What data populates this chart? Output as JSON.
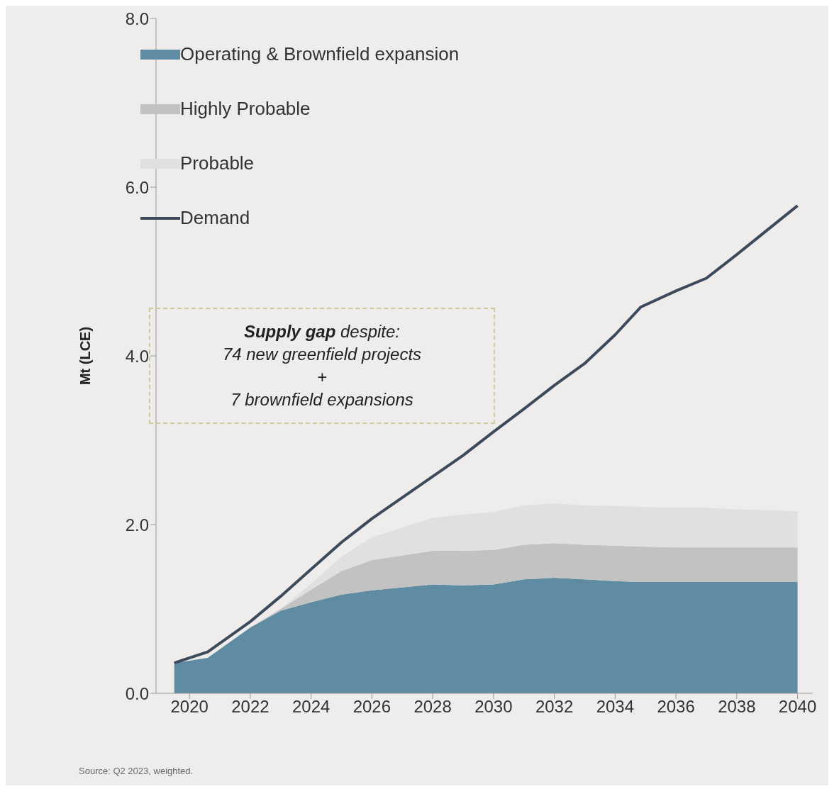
{
  "chart_data": {
    "type": "area",
    "ylabel": "Mt (LCE)",
    "stacked": true,
    "legend": "top left",
    "x": [
      2019.5,
      2020.6,
      2022,
      2023,
      2024,
      2025,
      2026,
      2028,
      2029,
      2030,
      2031,
      2032,
      2033,
      2034,
      2034.85,
      2036,
      2037,
      2038,
      2040
    ],
    "xlim": [
      2018.9,
      2040.5
    ],
    "xticks": [
      2020,
      2022,
      2024,
      2026,
      2028,
      2030,
      2032,
      2034,
      2036,
      2038,
      2040
    ],
    "ylim": [
      0,
      8
    ],
    "yticks": [
      {
        "value": 0,
        "label": "0.0"
      },
      {
        "value": 2,
        "label": "2.0"
      },
      {
        "value": 4,
        "label": "4.0"
      },
      {
        "value": 6,
        "label": "6.0"
      },
      {
        "value": 8,
        "label": "8.0"
      }
    ],
    "series": [
      {
        "name": "Operating & Brownfield expansion",
        "color": "#5f8ca2",
        "values": [
          0.36,
          0.42,
          0.78,
          0.98,
          1.08,
          1.17,
          1.22,
          1.29,
          1.28,
          1.29,
          1.35,
          1.37,
          1.35,
          1.33,
          1.32,
          1.32,
          1.32,
          1.32,
          1.32
        ]
      },
      {
        "name": "Highly Probable",
        "color": "#c2c2c2",
        "values": [
          0,
          0,
          0,
          0.02,
          0.15,
          0.28,
          0.36,
          0.4,
          0.41,
          0.41,
          0.41,
          0.41,
          0.41,
          0.42,
          0.42,
          0.41,
          0.41,
          0.41,
          0.41
        ]
      },
      {
        "name": "Probable",
        "color": "#e0e0e0",
        "values": [
          0,
          0,
          0,
          0,
          0.07,
          0.17,
          0.27,
          0.39,
          0.43,
          0.45,
          0.47,
          0.47,
          0.47,
          0.47,
          0.47,
          0.47,
          0.47,
          0.45,
          0.43
        ]
      },
      {
        "name": "Demand",
        "type": "line",
        "color": "#3d4a5c",
        "values": [
          0.36,
          0.49,
          0.85,
          1.15,
          1.47,
          1.79,
          2.07,
          2.57,
          2.82,
          3.1,
          3.37,
          3.65,
          3.91,
          4.25,
          4.58,
          4.77,
          4.92,
          5.2,
          5.78
        ]
      }
    ],
    "annotations": [
      "Supply gap despite:\n74 new greenfield projects\n+\n7 brownfield expansions",
      "Source: Q2 2023, weighted."
    ]
  }
}
